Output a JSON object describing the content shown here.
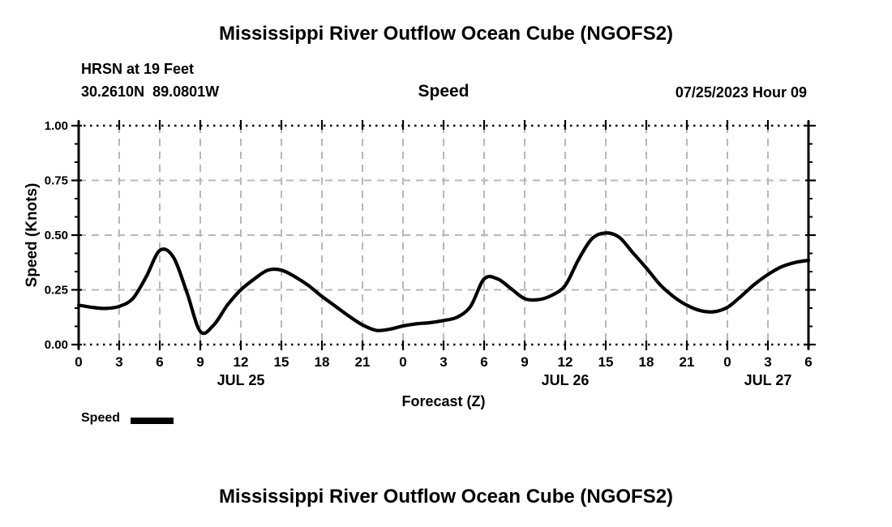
{
  "header": {
    "title": "Mississippi River Outflow Ocean Cube (NGOFS2)",
    "station_name_line": "HRSN at 19 Feet",
    "station_coords_line": "30.2610N  89.0801W",
    "center_label": "Speed",
    "datetime_label": "07/25/2023 Hour 09"
  },
  "legend": {
    "label": "Speed",
    "swatch_color": "#000000"
  },
  "footer": {
    "title": "Mississippi River Outflow Ocean Cube (NGOFS2)"
  },
  "colors": {
    "text": "#000000",
    "axis": "#000000",
    "grid": "#b8b8b8",
    "line": "#000000",
    "background": "#ffffff"
  },
  "chart_data": {
    "type": "line",
    "title": "Speed",
    "xlabel": "Forecast (Z)",
    "ylabel": "Speed (Knots)",
    "x_unit": "forecast hour (Z), starting 07/25/2023 00Z",
    "xlim": [
      0,
      54
    ],
    "ylim": [
      0.0,
      1.0
    ],
    "grid": true,
    "legend_position": "bottom-left",
    "yticks": {
      "values": [
        0.0,
        0.25,
        0.5,
        0.75,
        1.0
      ],
      "labels": [
        "0.00",
        "0.25",
        "0.50",
        "0.75",
        "1.00"
      ],
      "minor_per_interval": 2
    },
    "xticks": {
      "interval_hours": 3,
      "labels": [
        "0",
        "3",
        "6",
        "9",
        "12",
        "15",
        "18",
        "21",
        "0",
        "3",
        "6",
        "9",
        "12",
        "15",
        "18",
        "21",
        "0",
        "3",
        "6"
      ]
    },
    "day_labels": [
      {
        "label": "JUL 25",
        "hour": 12
      },
      {
        "label": "JUL 26",
        "hour": 36
      },
      {
        "label": "JUL 27",
        "hour": 51
      }
    ],
    "series": [
      {
        "name": "Speed",
        "color": "#000000",
        "x": [
          0,
          1,
          2,
          3,
          4,
          5,
          6,
          7,
          8,
          9,
          10,
          11,
          12,
          13,
          14,
          15,
          16,
          17,
          18,
          19,
          20,
          21,
          22,
          23,
          24,
          25,
          26,
          27,
          28,
          29,
          30,
          31,
          32,
          33,
          34,
          35,
          36,
          37,
          38,
          39,
          40,
          41,
          42,
          43,
          44,
          45,
          46,
          47,
          48,
          49,
          50,
          51,
          52,
          53,
          54
        ],
        "values": [
          0.18,
          0.17,
          0.165,
          0.175,
          0.21,
          0.31,
          0.43,
          0.4,
          0.24,
          0.06,
          0.09,
          0.18,
          0.25,
          0.3,
          0.34,
          0.34,
          0.31,
          0.27,
          0.22,
          0.175,
          0.13,
          0.09,
          0.065,
          0.07,
          0.085,
          0.095,
          0.1,
          0.11,
          0.125,
          0.175,
          0.3,
          0.3,
          0.255,
          0.21,
          0.205,
          0.225,
          0.27,
          0.39,
          0.485,
          0.51,
          0.49,
          0.42,
          0.35,
          0.275,
          0.22,
          0.18,
          0.155,
          0.15,
          0.17,
          0.22,
          0.275,
          0.32,
          0.355,
          0.375,
          0.385
        ]
      }
    ]
  }
}
